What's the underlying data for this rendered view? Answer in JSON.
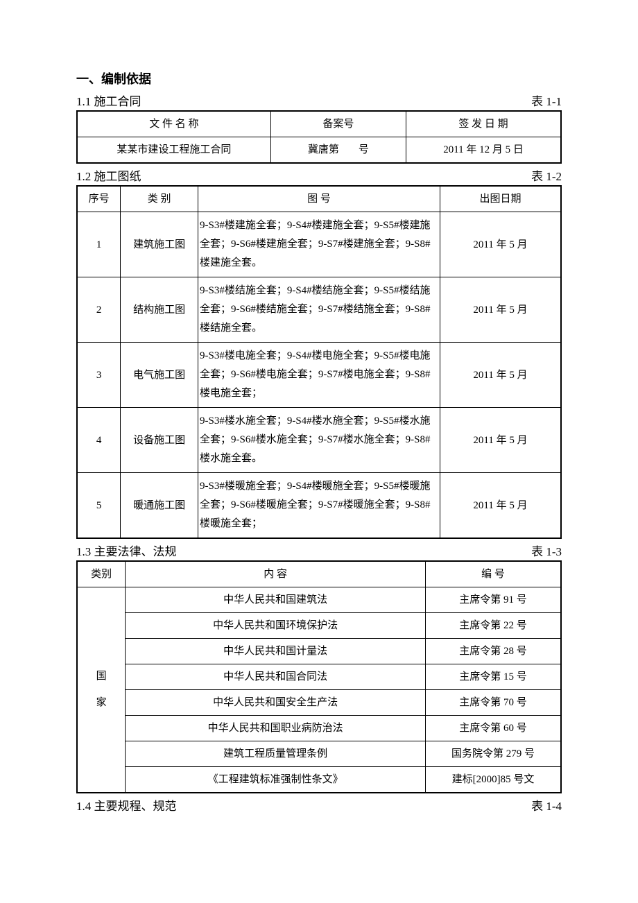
{
  "section_title": "一、编制依据",
  "sub1": {
    "title": "1.1 施工合同",
    "label": "表 1-1",
    "headers": [
      "文  件  名  称",
      "备案号",
      "签  发  日  期"
    ],
    "row": [
      "某某市建设工程施工合同",
      "冀唐第",
      "号",
      "2011 年 12 月 5 日"
    ]
  },
  "sub2": {
    "title": "1.2 施工图纸",
    "label": "表 1-2",
    "headers": [
      "序号",
      "类  别",
      "图    号",
      "出图日期"
    ],
    "rows": [
      {
        "n": "1",
        "cat": "建筑施工图",
        "detail": "9-S3#楼建施全套；9-S4#楼建施全套；9-S5#楼建施全套；9-S6#楼建施全套；9-S7#楼建施全套；9-S8#楼建施全套。",
        "date": "2011 年 5 月"
      },
      {
        "n": "2",
        "cat": "结构施工图",
        "detail": "9-S3#楼结施全套；9-S4#楼结施全套；9-S5#楼结施全套；9-S6#楼结施全套；9-S7#楼结施全套；9-S8#楼结施全套。",
        "date": "2011 年 5 月"
      },
      {
        "n": "3",
        "cat": "电气施工图",
        "detail": "9-S3#楼电施全套；9-S4#楼电施全套；9-S5#楼电施全套；9-S6#楼电施全套；9-S7#楼电施全套；9-S8#楼电施全套；",
        "date": "2011 年 5 月"
      },
      {
        "n": "4",
        "cat": "设备施工图",
        "detail": "9-S3#楼水施全套；9-S4#楼水施全套；9-S5#楼水施全套；9-S6#楼水施全套；9-S7#楼水施全套；9-S8#楼水施全套。",
        "date": "2011 年 5 月"
      },
      {
        "n": "5",
        "cat": "暖通施工图",
        "detail": "9-S3#楼暖施全套；9-S4#楼暖施全套；9-S5#楼暖施全套；9-S6#楼暖施全套；9-S7#楼暖施全套；9-S8#楼暖施全套；",
        "date": "2011 年 5 月"
      }
    ]
  },
  "sub3": {
    "title": "1.3 主要法律、法规",
    "label": "表 1-3",
    "headers": [
      "类别",
      "内    容",
      "编    号"
    ],
    "category": "国家",
    "rows": [
      {
        "content": "中华人民共和国建筑法",
        "code": "主席令第 91 号"
      },
      {
        "content": "中华人民共和国环境保护法",
        "code": "主席令第 22 号"
      },
      {
        "content": "中华人民共和国计量法",
        "code": "主席令第 28 号"
      },
      {
        "content": "中华人民共和国合同法",
        "code": "主席令第 15 号"
      },
      {
        "content": "中华人民共和国安全生产法",
        "code": "主席令第 70 号"
      },
      {
        "content": "中华人民共和国职业病防治法",
        "code": "主席令第 60 号"
      },
      {
        "content": "建筑工程质量管理条例",
        "code": "国务院令第 279 号"
      },
      {
        "content": "《工程建筑标准强制性条文》",
        "code": "建标[2000]85 号文"
      }
    ]
  },
  "sub4": {
    "title": "1.4 主要规程、规范",
    "label": "表 1-4"
  }
}
